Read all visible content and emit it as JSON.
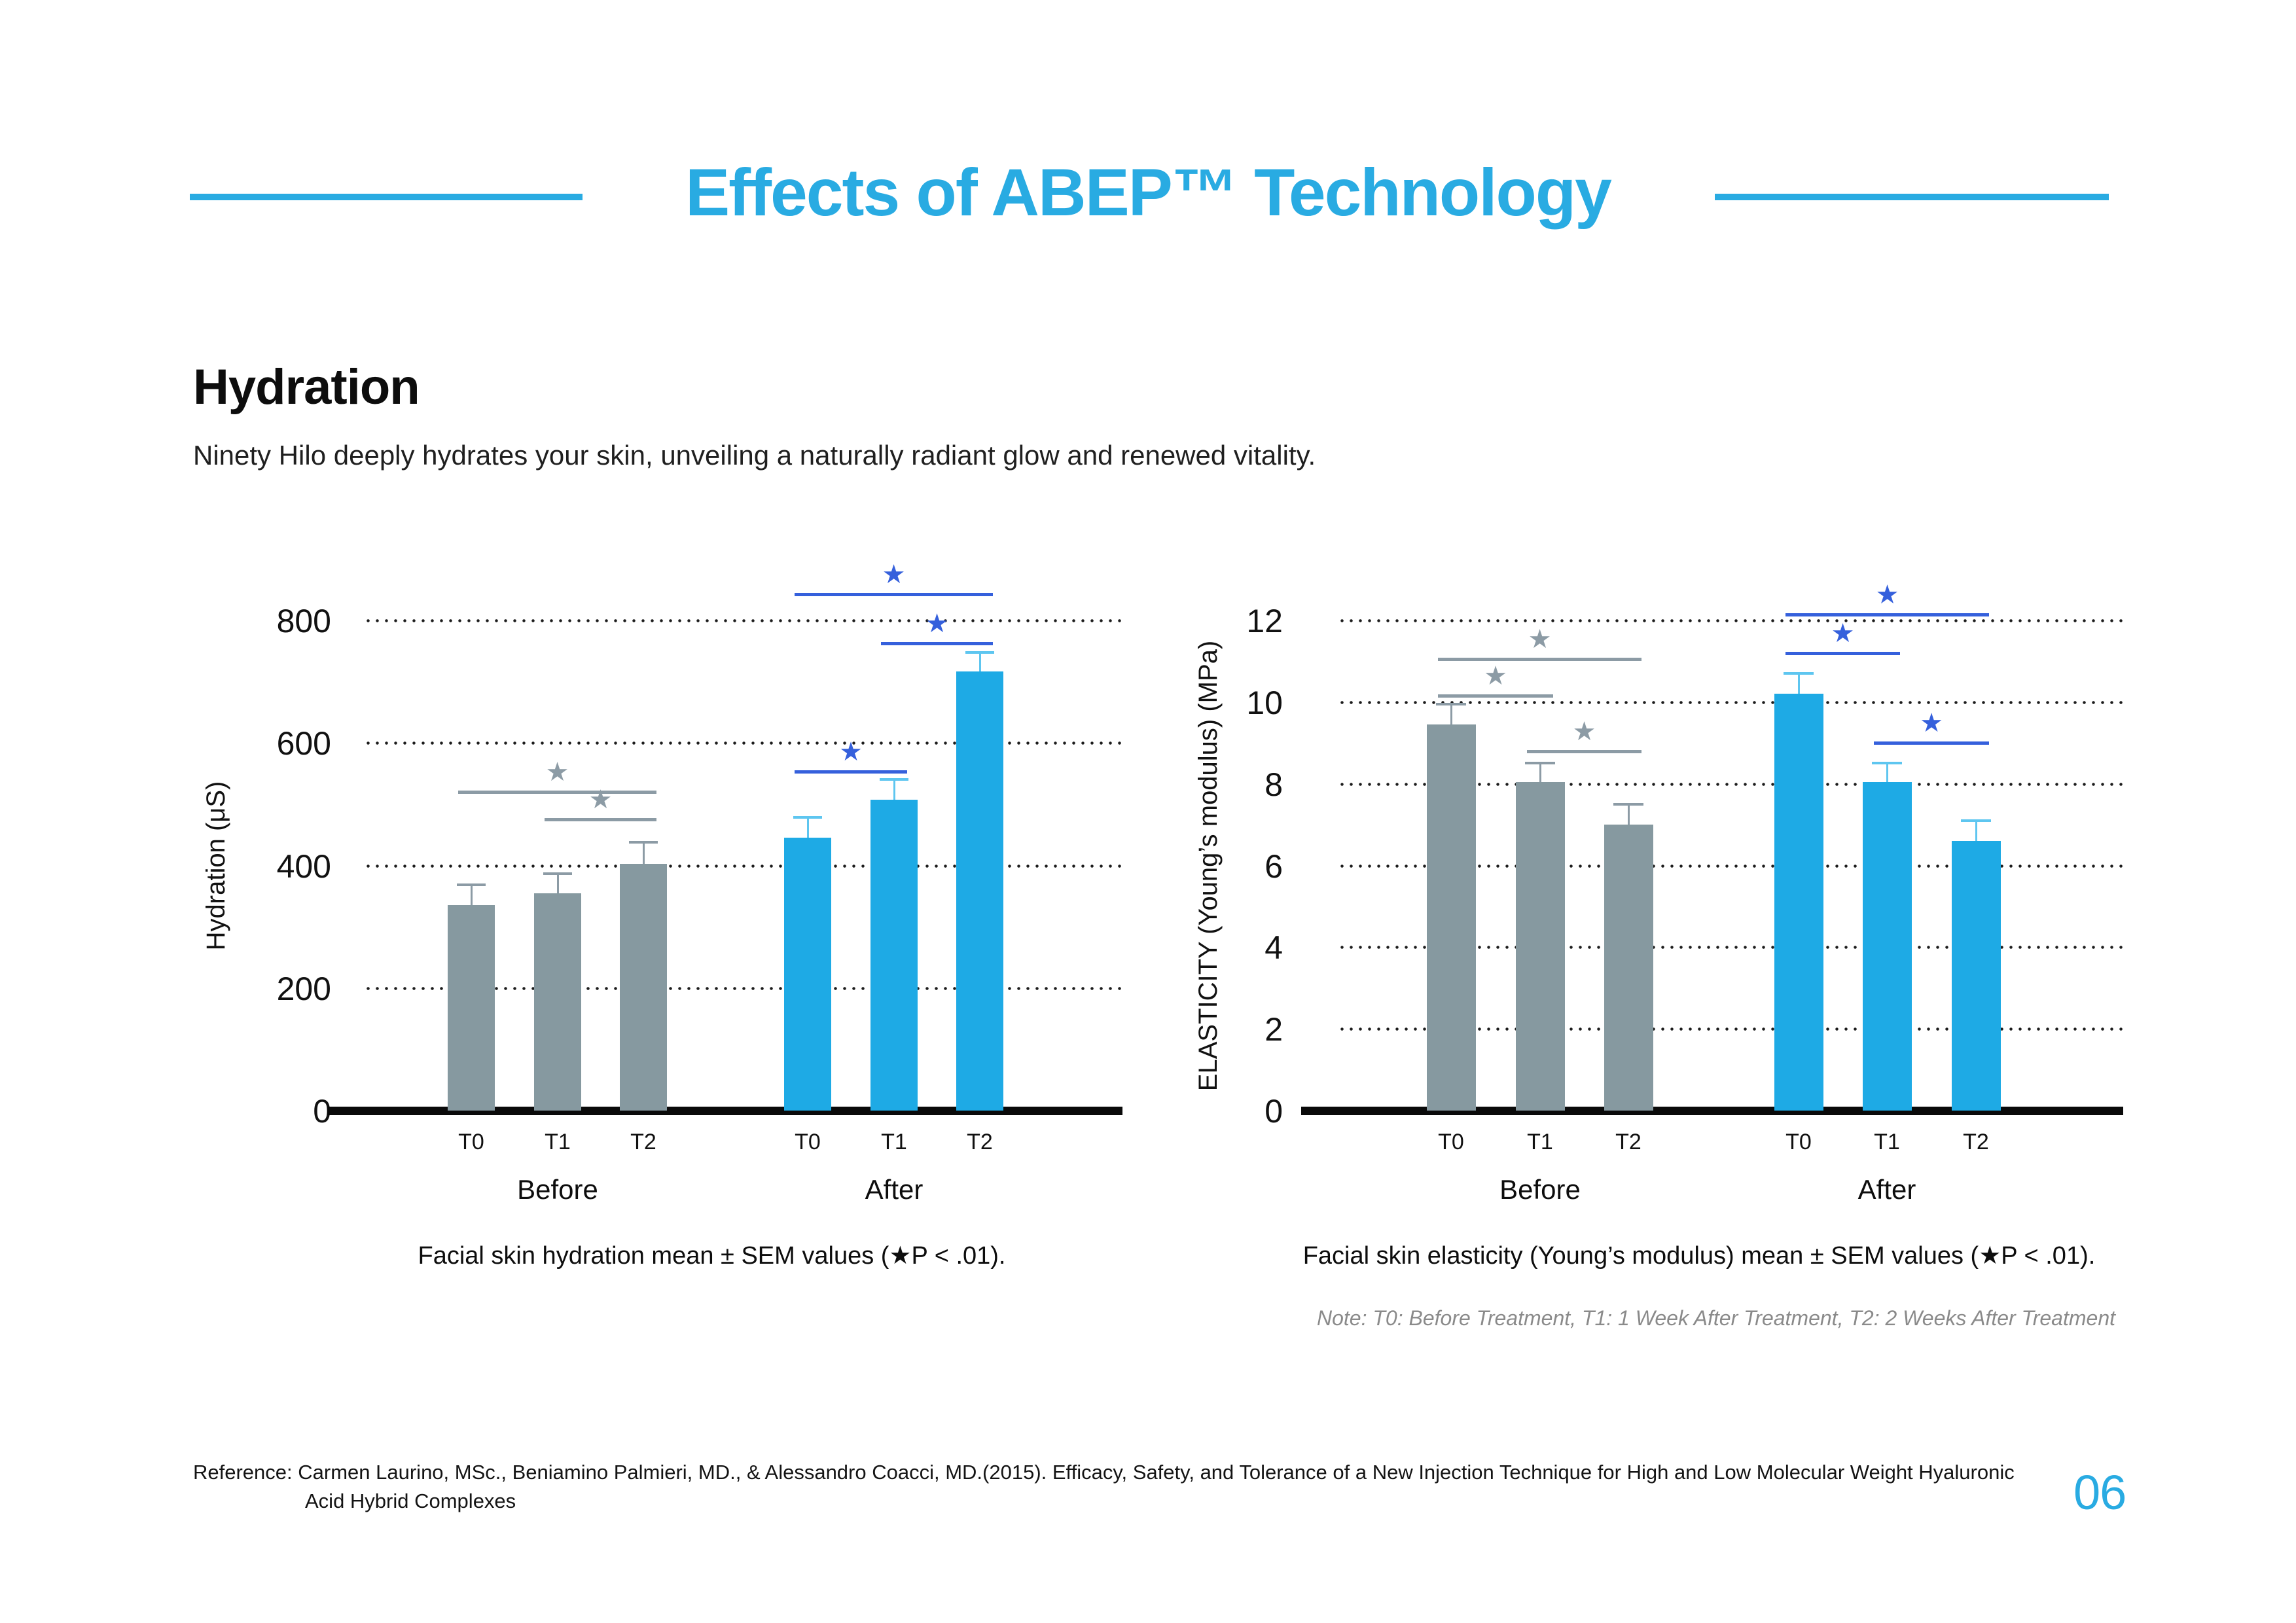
{
  "page": {
    "title": "Effects of ABEP™ Technology",
    "page_number": "06",
    "accent_color": "#29ABE2"
  },
  "section": {
    "heading": "Hydration",
    "subtitle": "Ninety Hilo deeply hydrates your skin, unveiling a naturally radiant glow and renewed vitality."
  },
  "charts_note": "Note: T0: Before Treatment, T1: 1 Week After Treatment, T2: 2 Weeks After Treatment",
  "reference": {
    "label": "Reference:",
    "line1": "Carmen Laurino, MSc., Beniamino Palmieri, MD., & Alessandro Coacci, MD.(2015). Efficacy, Safety, and Tolerance of a New Injection Technique for High and Low Molecular Weight Hyaluronic",
    "line2": "Acid Hybrid Complexes"
  },
  "sig_colors": {
    "gray": "#8C9BA5",
    "blue": "#3560DC"
  },
  "chart_data": [
    {
      "id": "hydration",
      "type": "bar",
      "title": "Facial skin hydration mean ± SEM values (★P < .01).",
      "ylabel": "Hydration (μS)",
      "yticks": [
        0,
        200,
        400,
        600,
        800
      ],
      "ylim": [
        0,
        860
      ],
      "grid": "dotted-horizontal",
      "legend_position": "none",
      "categories": [
        "T0",
        "T1",
        "T2"
      ],
      "series": [
        {
          "name": "Before",
          "color": "#8699A0",
          "error_color": "#8C9BA5",
          "values": [
            335,
            355,
            403
          ],
          "errors": [
            34,
            32,
            35
          ]
        },
        {
          "name": "After",
          "color": "#1EAAE5",
          "error_color": "#5EC6F0",
          "values": [
            445,
            507,
            717
          ],
          "errors": [
            33,
            33,
            31
          ]
        }
      ],
      "significance": [
        {
          "from": {
            "series": "Before",
            "category": "T0"
          },
          "to": {
            "series": "Before",
            "category": "T2"
          },
          "level": 520,
          "style": "gray"
        },
        {
          "from": {
            "series": "Before",
            "category": "T1"
          },
          "to": {
            "series": "Before",
            "category": "T2"
          },
          "level": 475,
          "style": "gray"
        },
        {
          "from": {
            "series": "After",
            "category": "T0"
          },
          "to": {
            "series": "After",
            "category": "T1"
          },
          "level": 553,
          "style": "blue"
        },
        {
          "from": {
            "series": "After",
            "category": "T1"
          },
          "to": {
            "series": "After",
            "category": "T2"
          },
          "level": 763,
          "style": "blue"
        },
        {
          "from": {
            "series": "After",
            "category": "T0"
          },
          "to": {
            "series": "After",
            "category": "T2"
          },
          "level": 843,
          "style": "blue"
        }
      ]
    },
    {
      "id": "elasticity",
      "type": "bar",
      "title": "Facial skin elasticity (Young’s modulus) mean ± SEM values (★P < .01).",
      "ylabel": "ELASTICITY (Young’s modulus) (MPa)",
      "yticks": [
        0,
        2,
        4,
        6,
        8,
        10,
        12
      ],
      "ylim": [
        0,
        13
      ],
      "grid": "dotted-horizontal",
      "legend_position": "none",
      "categories": [
        "T0",
        "T1",
        "T2"
      ],
      "series": [
        {
          "name": "Before",
          "color": "#8699A0",
          "error_color": "#8C9BA5",
          "values": [
            9.45,
            8.05,
            7.0
          ],
          "errors": [
            0.5,
            0.45,
            0.5
          ]
        },
        {
          "name": "After",
          "color": "#1EAAE5",
          "error_color": "#5EC6F0",
          "values": [
            10.2,
            8.05,
            6.6
          ],
          "errors": [
            0.5,
            0.45,
            0.5
          ]
        }
      ],
      "significance": [
        {
          "from": {
            "series": "Before",
            "category": "T0"
          },
          "to": {
            "series": "Before",
            "category": "T1"
          },
          "level": 10.15,
          "style": "gray"
        },
        {
          "from": {
            "series": "Before",
            "category": "T0"
          },
          "to": {
            "series": "Before",
            "category": "T2"
          },
          "level": 11.05,
          "style": "gray"
        },
        {
          "from": {
            "series": "Before",
            "category": "T1"
          },
          "to": {
            "series": "Before",
            "category": "T2"
          },
          "level": 8.8,
          "style": "gray"
        },
        {
          "from": {
            "series": "After",
            "category": "T0"
          },
          "to": {
            "series": "After",
            "category": "T1"
          },
          "level": 11.2,
          "style": "blue"
        },
        {
          "from": {
            "series": "After",
            "category": "T0"
          },
          "to": {
            "series": "After",
            "category": "T2"
          },
          "level": 12.15,
          "style": "blue"
        },
        {
          "from": {
            "series": "After",
            "category": "T1"
          },
          "to": {
            "series": "After",
            "category": "T2"
          },
          "level": 9.0,
          "style": "blue"
        }
      ]
    }
  ]
}
